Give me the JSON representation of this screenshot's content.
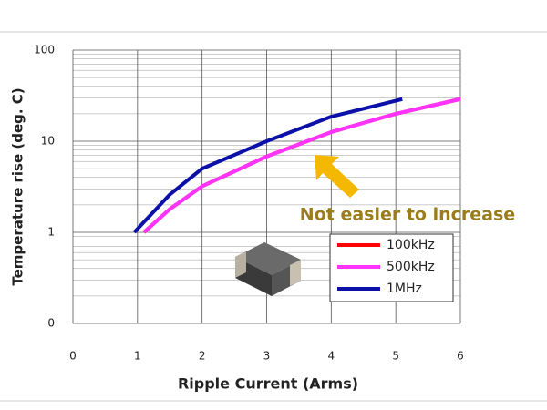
{
  "chart_data": {
    "type": "line",
    "xlabel": "Ripple Current (Arms)",
    "ylabel": "Temperature rise (deg. C)",
    "annotation": "Not easier to increase",
    "log_y": true,
    "grid": true,
    "legend_position": "lower right",
    "xlim": [
      0,
      6
    ],
    "xticks": [
      0,
      1,
      2,
      3,
      4,
      5,
      6
    ],
    "ylim": [
      0.1,
      100
    ],
    "yticks": [
      {
        "value": 0.1,
        "label": "0"
      },
      1,
      10,
      100
    ],
    "series": [
      {
        "name": "100kHz",
        "color": "#ff0000",
        "x": [
          1.1,
          1.5,
          2,
          3,
          4,
          5,
          6
        ],
        "values": [
          1,
          1.8,
          3.2,
          6.8,
          12.6,
          20,
          29
        ]
      },
      {
        "name": "500kHz",
        "color": "#ff33ff",
        "x": [
          1.1,
          1.5,
          2,
          3,
          4,
          5,
          6
        ],
        "values": [
          1,
          1.8,
          3.2,
          6.8,
          12.6,
          20,
          29
        ]
      },
      {
        "name": "1MHz",
        "color": "#0a10a8",
        "x": [
          0.95,
          1.5,
          2,
          3,
          4,
          5.1
        ],
        "values": [
          1,
          2.6,
          5,
          10,
          18.6,
          29
        ]
      }
    ]
  }
}
